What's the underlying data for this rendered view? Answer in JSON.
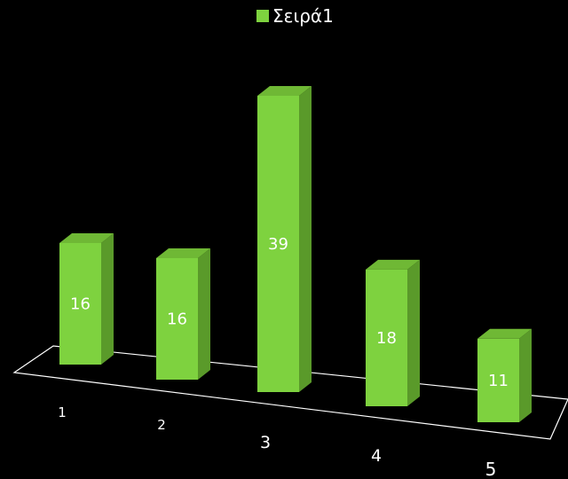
{
  "chart_data": {
    "type": "bar",
    "categories": [
      "1",
      "2",
      "3",
      "4",
      "5"
    ],
    "series": [
      {
        "name": "Σειρά1",
        "values": [
          16,
          16,
          39,
          18,
          11
        ]
      }
    ],
    "data_labels": [
      "16",
      "16",
      "39",
      "18",
      "11"
    ],
    "legend_position": "top",
    "grid": false,
    "three_d": true
  },
  "colors": {
    "background": "#000000",
    "bar_front": "#7ed23f",
    "bar_side": "#5a9a2a",
    "bar_top": "#6fb835",
    "floor_line": "#ffffff",
    "text": "#ffffff"
  }
}
